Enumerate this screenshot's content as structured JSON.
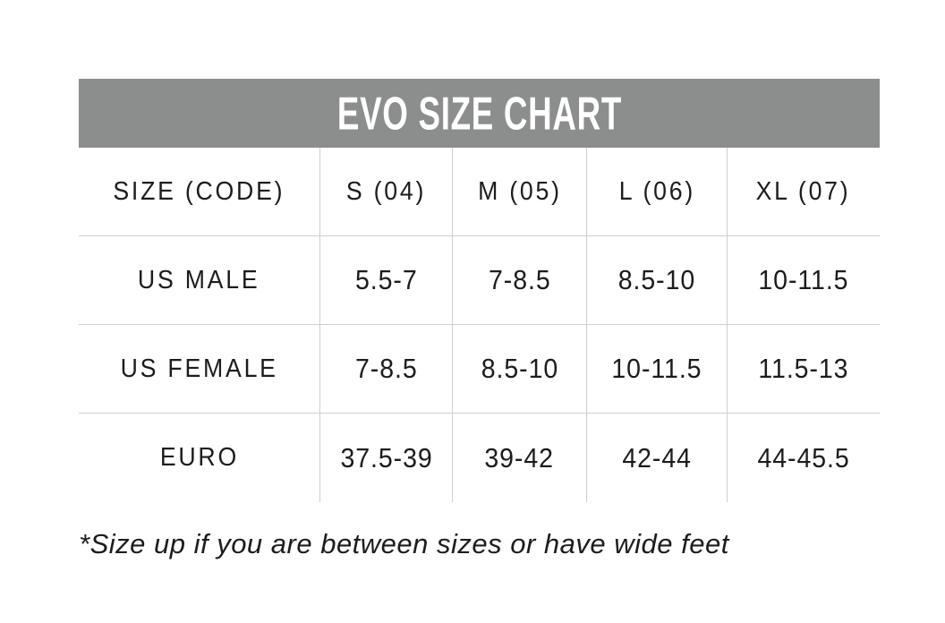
{
  "title": "EVO SIZE CHART",
  "footnote": "*Size up if you are between sizes or have wide feet",
  "chart_data": {
    "type": "table",
    "title": "EVO SIZE CHART",
    "columns": [
      "SIZE (CODE)",
      "S (04)",
      "M (05)",
      "L (06)",
      "XL (07)"
    ],
    "rows": [
      {
        "label": "US MALE",
        "values": [
          "5.5-7",
          "7-8.5",
          "8.5-10",
          "10-11.5"
        ]
      },
      {
        "label": "US FEMALE",
        "values": [
          "7-8.5",
          "8.5-10",
          "10-11.5",
          "11.5-13"
        ]
      },
      {
        "label": "EURO",
        "values": [
          "37.5-39",
          "39-42",
          "42-44",
          "44-45.5"
        ]
      }
    ],
    "footnote": "*Size up if you are between sizes or have wide feet",
    "layout": {
      "grid": "row-and-column separators only, no outer border",
      "header_row_position": "top"
    }
  },
  "colors": {
    "header_bg": "#8c8e8d",
    "header_text": "#ffffff",
    "border": "#cfcfcf",
    "text": "#1c1c1c",
    "page_bg": "#ffffff"
  }
}
